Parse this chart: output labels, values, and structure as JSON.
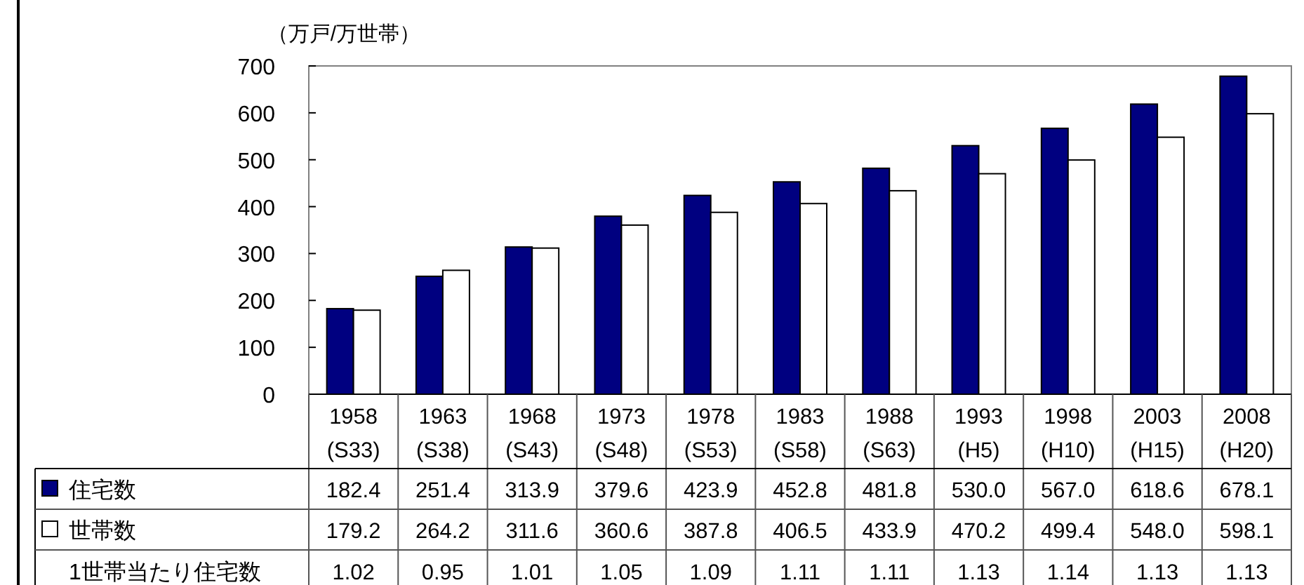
{
  "chart_data": {
    "type": "bar",
    "ylabel": "（万戸/万世帯）",
    "categories": [
      "1958\n(S33)",
      "1963\n(S38)",
      "1968\n(S43)",
      "1973\n(S48)",
      "1978\n(S53)",
      "1983\n(S58)",
      "1988\n(S63)",
      "1993\n(H5)",
      "1998\n(H10)",
      "2003\n(H15)",
      "2008\n(H20)"
    ],
    "series": [
      {
        "name": "住宅数",
        "color": "#000080",
        "values": [
          182.4,
          251.4,
          313.9,
          379.6,
          423.9,
          452.8,
          481.8,
          530.0,
          567.0,
          618.6,
          678.1
        ],
        "value_labels": [
          "182.4",
          "251.4",
          "313.9",
          "379.6",
          "423.9",
          "452.8",
          "481.8",
          "530.0",
          "567.0",
          "618.6",
          "678.1"
        ]
      },
      {
        "name": "世帯数",
        "color": "#ffffff",
        "values": [
          179.2,
          264.2,
          311.6,
          360.6,
          387.8,
          406.5,
          433.9,
          470.2,
          499.4,
          548.0,
          598.1
        ],
        "value_labels": [
          "179.2",
          "264.2",
          "311.6",
          "360.6",
          "387.8",
          "406.5",
          "433.9",
          "470.2",
          "499.4",
          "548.0",
          "598.1"
        ]
      }
    ],
    "annotations": [
      "1世帯当たり住宅数",
      "1.02",
      "0.95",
      "1.01",
      "1.05",
      "1.09",
      "1.11",
      "1.11",
      "1.13",
      "1.14",
      "1.13",
      "1.13"
    ],
    "ylim": [
      0,
      700
    ],
    "yticks": [
      0,
      100,
      200,
      300,
      400,
      500,
      600,
      700
    ],
    "grid": false,
    "legend": "bottom"
  }
}
